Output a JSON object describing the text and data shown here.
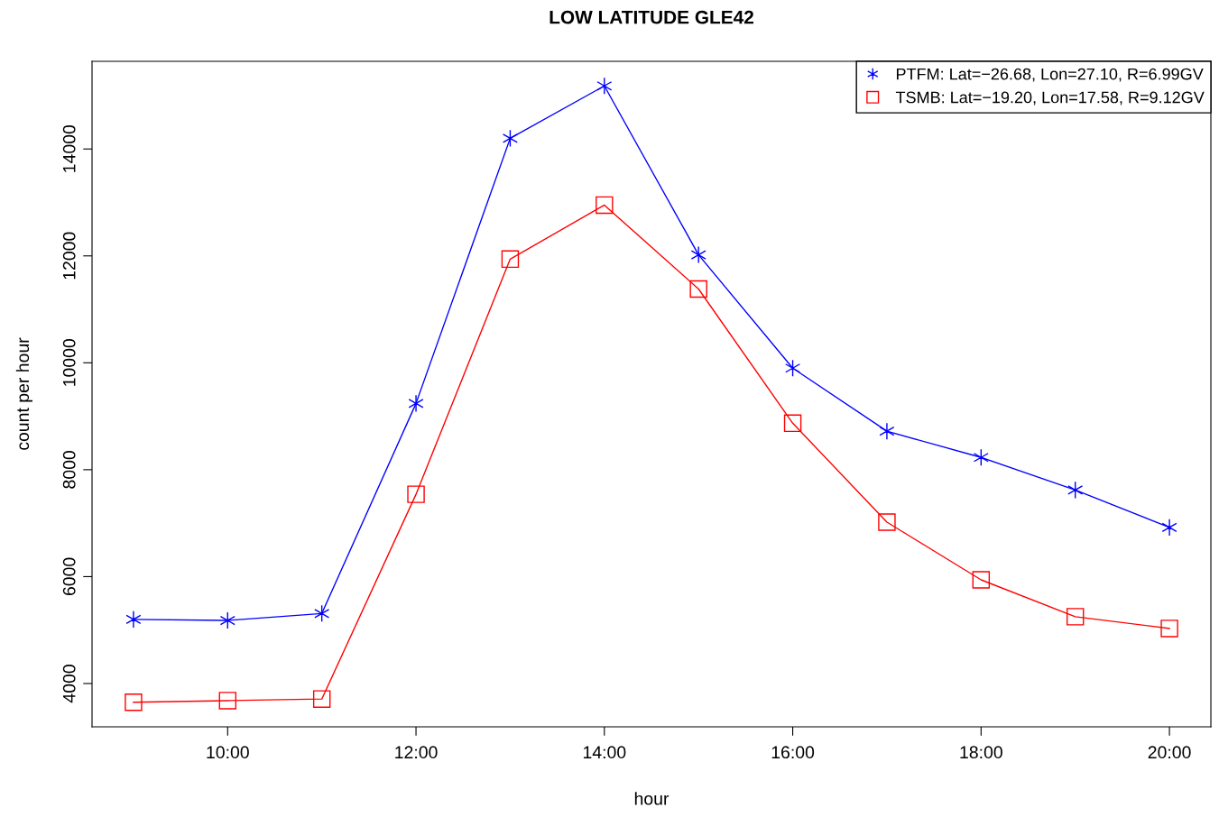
{
  "chart_data": {
    "type": "line",
    "title": "LOW LATITUDE GLE42",
    "xlabel": "hour",
    "ylabel": "count per hour",
    "x": [
      9,
      10,
      11,
      12,
      13,
      14,
      15,
      16,
      17,
      18,
      19,
      20
    ],
    "xlim": [
      8.56,
      20.44
    ],
    "xticks": [
      {
        "value": 10,
        "label": "10:00"
      },
      {
        "value": 12,
        "label": "12:00"
      },
      {
        "value": 14,
        "label": "14:00"
      },
      {
        "value": 16,
        "label": "16:00"
      },
      {
        "value": 18,
        "label": "18:00"
      },
      {
        "value": 20,
        "label": "20:00"
      }
    ],
    "ylim": [
      3190,
      15640
    ],
    "yticks": [
      4000,
      6000,
      8000,
      10000,
      12000,
      14000
    ],
    "series": [
      {
        "name": "PTFM: Lat=−26.68, Lon=27.10, R=6.99GV",
        "color": "#0000ff",
        "marker": "cross",
        "values": [
          5200,
          5180,
          5310,
          9240,
          14200,
          15180,
          12020,
          9900,
          8720,
          8230,
          7620,
          6920
        ]
      },
      {
        "name": "TSMB: Lat=−19.20, Lon=17.58, R=9.12GV",
        "color": "#ff0000",
        "marker": "square",
        "values": [
          3650,
          3680,
          3710,
          7540,
          11940,
          12950,
          11380,
          8870,
          7020,
          5940,
          5250,
          5030
        ]
      }
    ],
    "grid": false,
    "legend": "top right",
    "line_style": "solid"
  }
}
